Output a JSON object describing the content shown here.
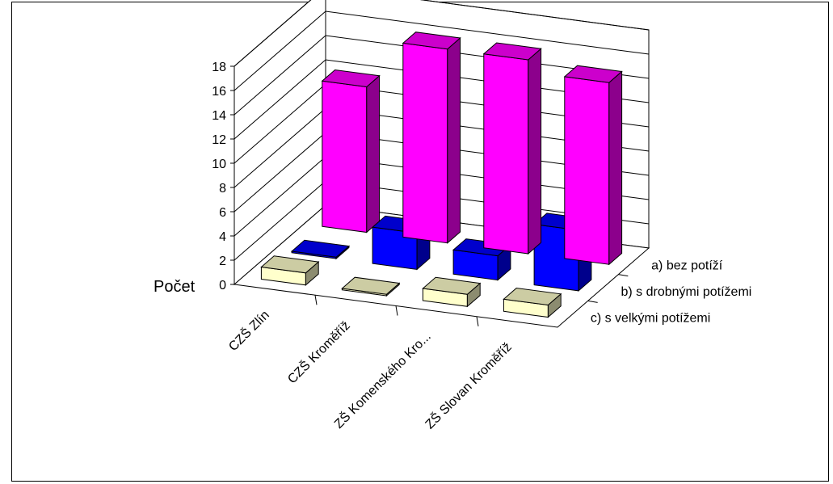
{
  "chart_data": {
    "type": "bar",
    "variant": "3d-column",
    "ylabel": "Počet",
    "ylim": [
      0,
      18
    ],
    "yticks": [
      "0",
      "2",
      "4",
      "6",
      "8",
      "10",
      "12",
      "14",
      "16",
      "18"
    ],
    "grid": true,
    "categories": [
      "CZŠ Zlín",
      "CZŠ Kroměříž",
      "ZŠ Komenského Kro...",
      "ZŠ Slovan Kroměříž"
    ],
    "series": [
      {
        "name": "a) bez potíží",
        "values": [
          12,
          16,
          16,
          15
        ],
        "color": "#ff00ff"
      },
      {
        "name": "b) s drobnými potížemi",
        "values": [
          0,
          3,
          2,
          5
        ],
        "color": "#0000ff"
      },
      {
        "name": "c) s velkými potížemi",
        "values": [
          1,
          0,
          1,
          1
        ],
        "color": "#ffffcc"
      }
    ]
  }
}
